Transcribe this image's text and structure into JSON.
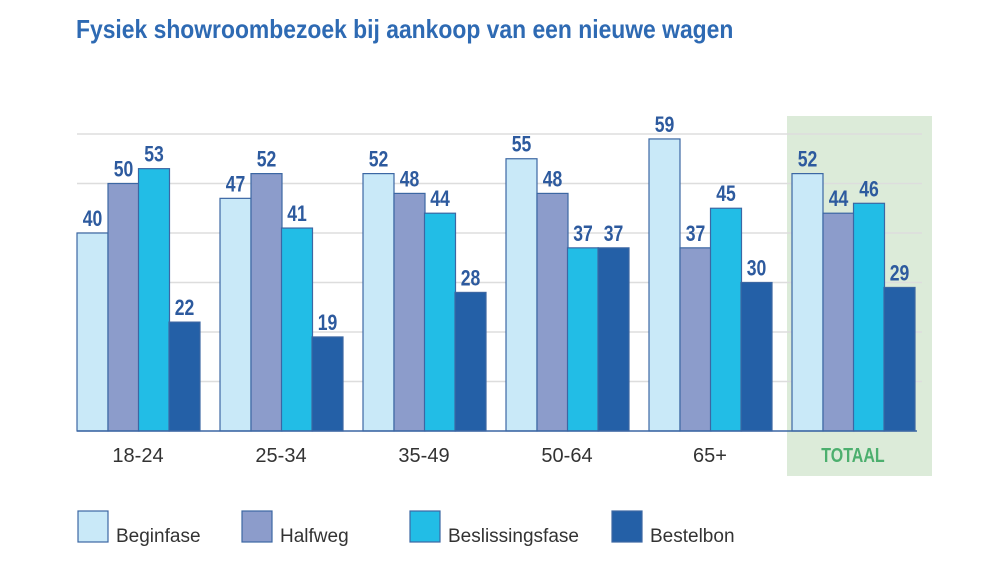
{
  "chart_data": {
    "type": "bar",
    "title": "Fysiek showroombezoek bij aankoop van een nieuwe wagen",
    "xlabel": "",
    "ylabel": "",
    "ylim": [
      0,
      60
    ],
    "grid": true,
    "grid_step": 10,
    "legend_position": "bottom",
    "categories": [
      "18-24",
      "25-34",
      "35-49",
      "50-64",
      "65+",
      "TOTAAL"
    ],
    "highlighted_category": "TOTAAL",
    "highlight_color": "#dcebd9",
    "highlight_label_color": "#4caf6e",
    "series": [
      {
        "name": "Beginfase",
        "color": "#c9e9f8",
        "values": [
          40,
          47,
          52,
          55,
          59,
          52
        ]
      },
      {
        "name": "Halfweg",
        "color": "#8c9ccb",
        "values": [
          50,
          52,
          48,
          48,
          37,
          44
        ]
      },
      {
        "name": "Beslissingsfase",
        "color": "#22bde6",
        "values": [
          53,
          41,
          44,
          37,
          45,
          46
        ]
      },
      {
        "name": "Bestelbon",
        "color": "#2460a7",
        "values": [
          22,
          19,
          28,
          37,
          30,
          29
        ]
      }
    ]
  }
}
